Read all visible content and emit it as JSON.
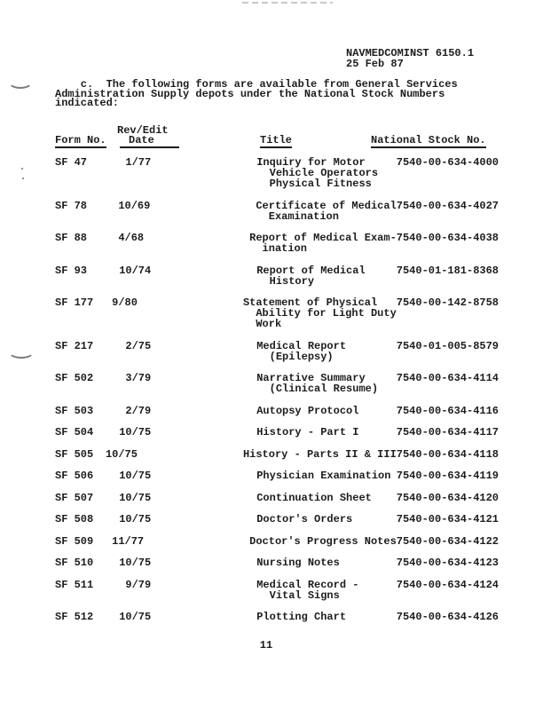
{
  "page": {
    "doc_number": "NAVMEDCOMINST 6150.1",
    "doc_date": "25 Feb 87",
    "intro_lines": [
      "    c.  The following forms are available from General Services",
      "Administration Supply depots under the National Stock Numbers",
      "indicated:"
    ],
    "page_number": "11"
  },
  "table": {
    "headers": {
      "form": "Form No.",
      "rev_edit_top": "Rev/Edit",
      "rev_edit_bottom": "Date",
      "title": "Title",
      "stock": "National Stock No."
    },
    "rows": [
      {
        "form": "SF 47",
        "date": "1/77",
        "title_lines": [
          "Inquiry for Motor",
          "  Vehicle Operators",
          "  Physical Fitness"
        ],
        "stock": "7540-00-634-4000"
      },
      {
        "form": "SF 78",
        "date": "10/69",
        "title_lines": [
          "Certificate of Medical",
          "  Examination"
        ],
        "stock": "7540-00-634-4027"
      },
      {
        "form": "SF 88",
        "date": "4/68",
        "title_lines": [
          "Report of Medical Exam-",
          "  ination"
        ],
        "stock": "7540-00-634-4038"
      },
      {
        "form": "SF 93",
        "date": "10/74",
        "title_lines": [
          "Report of Medical",
          "  History"
        ],
        "stock": "7540-01-181-8368"
      },
      {
        "form": "SF 177",
        "date": "9/80",
        "title_lines": [
          "Statement of Physical",
          "  Ability for Light Duty",
          "  Work"
        ],
        "stock": "7540-00-142-8758"
      },
      {
        "form": "SF 217",
        "date": "2/75",
        "title_lines": [
          "Medical Report",
          "  (Epilepsy)"
        ],
        "stock": "7540-01-005-8579"
      },
      {
        "form": "SF 502",
        "date": "3/79",
        "title_lines": [
          "Narrative Summary",
          "  (Clinical Resume)"
        ],
        "stock": "7540-00-634-4114"
      },
      {
        "form": "SF 503",
        "date": "2/79",
        "title_lines": [
          "Autopsy Protocol"
        ],
        "stock": "7540-00-634-4116"
      },
      {
        "form": "SF 504",
        "date": "10/75",
        "title_lines": [
          "History - Part I"
        ],
        "stock": "7540-00-634-4117"
      },
      {
        "form": "SF 505",
        "date": "10/75",
        "title_lines": [
          "History - Parts II & III"
        ],
        "stock": "7540-00-634-4118"
      },
      {
        "form": "SF 506",
        "date": "10/75",
        "title_lines": [
          "Physician Examination"
        ],
        "stock": "7540-00-634-4119"
      },
      {
        "form": "SF 507",
        "date": "10/75",
        "title_lines": [
          "Continuation Sheet"
        ],
        "stock": "7540-00-634-4120"
      },
      {
        "form": "SF 508",
        "date": "10/75",
        "title_lines": [
          "Doctor's Orders"
        ],
        "stock": "7540-00-634-4121"
      },
      {
        "form": "SF 509",
        "date": "11/77",
        "title_lines": [
          "Doctor's Progress Notes"
        ],
        "stock": "7540-00-634-4122"
      },
      {
        "form": "SF 510",
        "date": "10/75",
        "title_lines": [
          "Nursing Notes"
        ],
        "stock": "7540-00-634-4123"
      },
      {
        "form": "SF 511",
        "date": "9/79",
        "title_lines": [
          "Medical Record -",
          "  Vital Signs"
        ],
        "stock": "7540-00-634-4124"
      },
      {
        "form": "SF 512",
        "date": "10/75",
        "title_lines": [
          "Plotting Chart"
        ],
        "stock": "7540-00-634-4126"
      }
    ]
  }
}
